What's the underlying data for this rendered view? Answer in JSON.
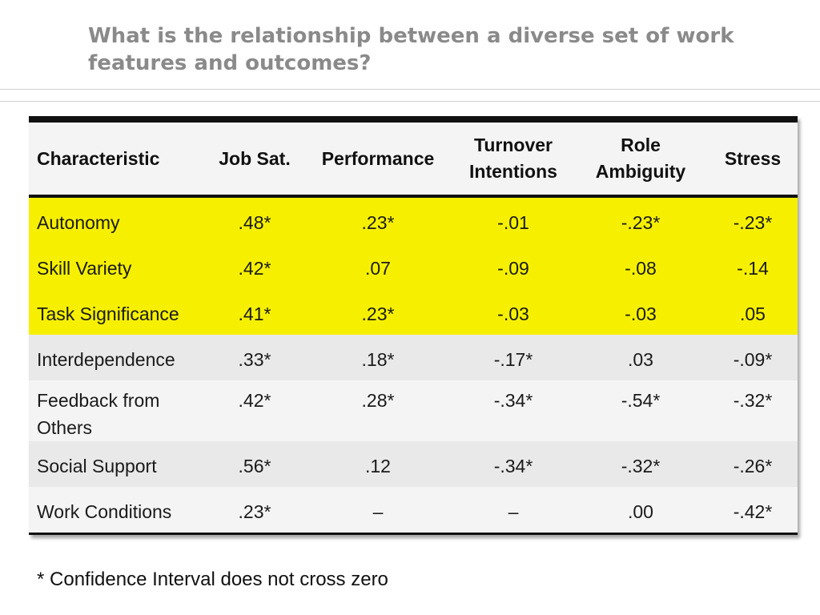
{
  "title": "What is the relationship between a diverse set of work features and outcomes?",
  "table": {
    "headers": [
      "Characteristic",
      "Job Sat.",
      "Performance",
      "Turnover Intentions",
      "Role Ambiguity",
      "Stress"
    ],
    "rows": [
      {
        "cells": [
          "Autonomy",
          ".48*",
          ".23*",
          "-.01",
          "-.23*",
          "-.23*"
        ],
        "highlight": true
      },
      {
        "cells": [
          "Skill Variety",
          ".42*",
          ".07",
          "-.09",
          "-.08",
          "-.14"
        ],
        "highlight": true
      },
      {
        "cells": [
          "Task Significance",
          ".41*",
          ".23*",
          "-.03",
          "-.03",
          ".05"
        ],
        "highlight": true
      },
      {
        "cells": [
          "Interdependence",
          ".33*",
          ".18*",
          "-.17*",
          ".03",
          "-.09*"
        ],
        "highlight": false
      },
      {
        "cells": [
          "Feedback from Others",
          ".42*",
          ".28*",
          "-.34*",
          "-.54*",
          "-.32*"
        ],
        "highlight": false
      },
      {
        "cells": [
          "Social Support",
          ".56*",
          ".12",
          "-.34*",
          "-.32*",
          "-.26*"
        ],
        "highlight": false
      },
      {
        "cells": [
          "Work Conditions",
          ".23*",
          "–",
          "–",
          ".00",
          "-.42*"
        ],
        "highlight": false
      }
    ],
    "highlight_color": "#f6f000"
  },
  "footnote": "* Confidence Interval does not cross zero"
}
